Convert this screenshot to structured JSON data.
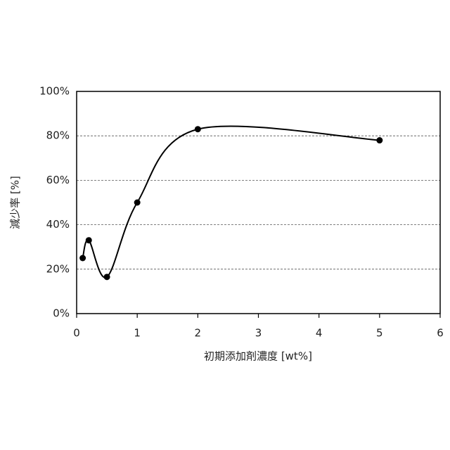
{
  "chart_data": {
    "type": "scatter",
    "smooth": true,
    "color": "#000000",
    "x": [
      0.1,
      0.2,
      0.5,
      1,
      2,
      5
    ],
    "values": [
      25,
      33,
      16.5,
      50,
      83,
      78
    ],
    "xlabel": "初期添加剤濃度 [wt%]",
    "ylabel": "減少率 [%]",
    "xlim": [
      0,
      6
    ],
    "xticks": [
      0,
      1,
      2,
      3,
      4,
      5,
      6
    ],
    "ylim": [
      0,
      100
    ],
    "yticks": [
      {
        "value": 0,
        "label": "0%"
      },
      {
        "value": 20,
        "label": "20%"
      },
      {
        "value": 40,
        "label": "40%"
      },
      {
        "value": 60,
        "label": "60%"
      },
      {
        "value": 80,
        "label": "80%"
      },
      {
        "value": 100,
        "label": "100%"
      }
    ],
    "grid": true
  }
}
